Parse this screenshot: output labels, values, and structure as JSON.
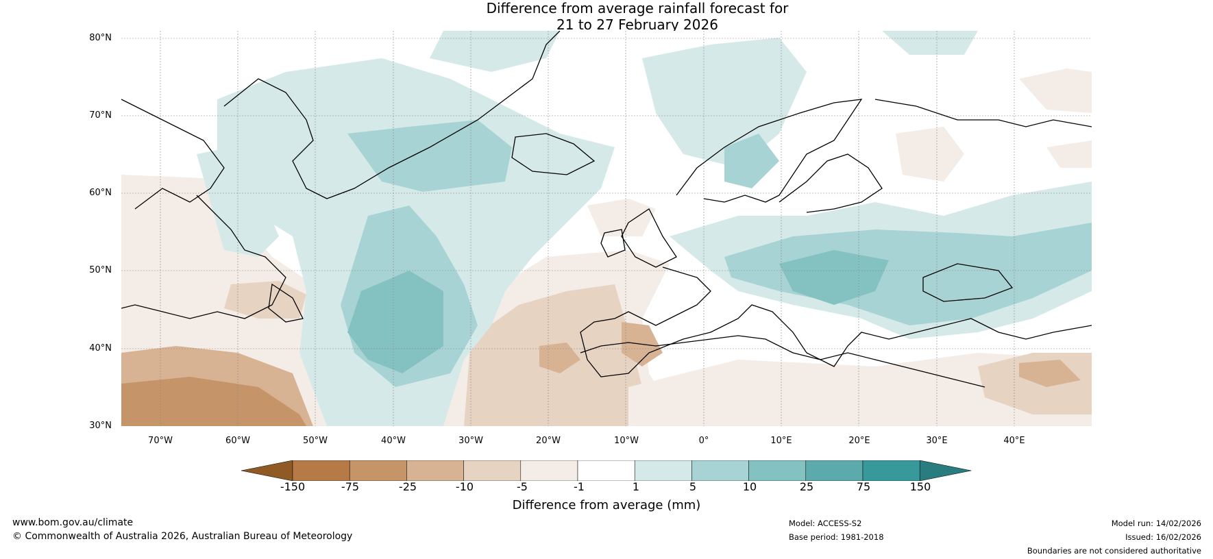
{
  "title": {
    "line1": "Difference from average rainfall forecast for",
    "line2": "21 to 27 February 2026"
  },
  "map": {
    "region": "North Atlantic and Europe",
    "lat_ticks": [
      "80°N",
      "70°N",
      "60°N",
      "50°N",
      "40°N",
      "30°N"
    ],
    "lon_ticks": [
      "70°W",
      "60°W",
      "50°W",
      "40°W",
      "30°W",
      "20°W",
      "10°W",
      "0°",
      "10°E",
      "20°E",
      "30°E",
      "40°E"
    ],
    "extent": {
      "lon": [
        -75,
        50
      ],
      "lat": [
        30,
        81
      ]
    }
  },
  "colorbar": {
    "title": "Difference from average (mm)",
    "boundaries": [
      "-150",
      "-75",
      "-25",
      "-10",
      "-5",
      "-1",
      "1",
      "5",
      "10",
      "25",
      "75",
      "150"
    ],
    "colors": [
      "#8f5a24",
      "#b57a45",
      "#c59468",
      "#d8b393",
      "#e6d3c2",
      "#f4ece6",
      "#ffffff",
      "#d5e9e9",
      "#a8d3d4",
      "#84c1c1",
      "#5daaac",
      "#37999a",
      "#2a7d7e"
    ]
  },
  "footer": {
    "url": "www.bom.gov.au/climate",
    "copyright": "© Commonwealth of Australia 2026, Australian Bureau of Meteorology",
    "model": "Model: ACCESS-S2",
    "base_period": "Base period: 1981-2018",
    "model_run": "Model run: 14/02/2026",
    "issued": "Issued: 16/02/2026",
    "disclaimer": "Boundaries are not considered authoritative"
  }
}
